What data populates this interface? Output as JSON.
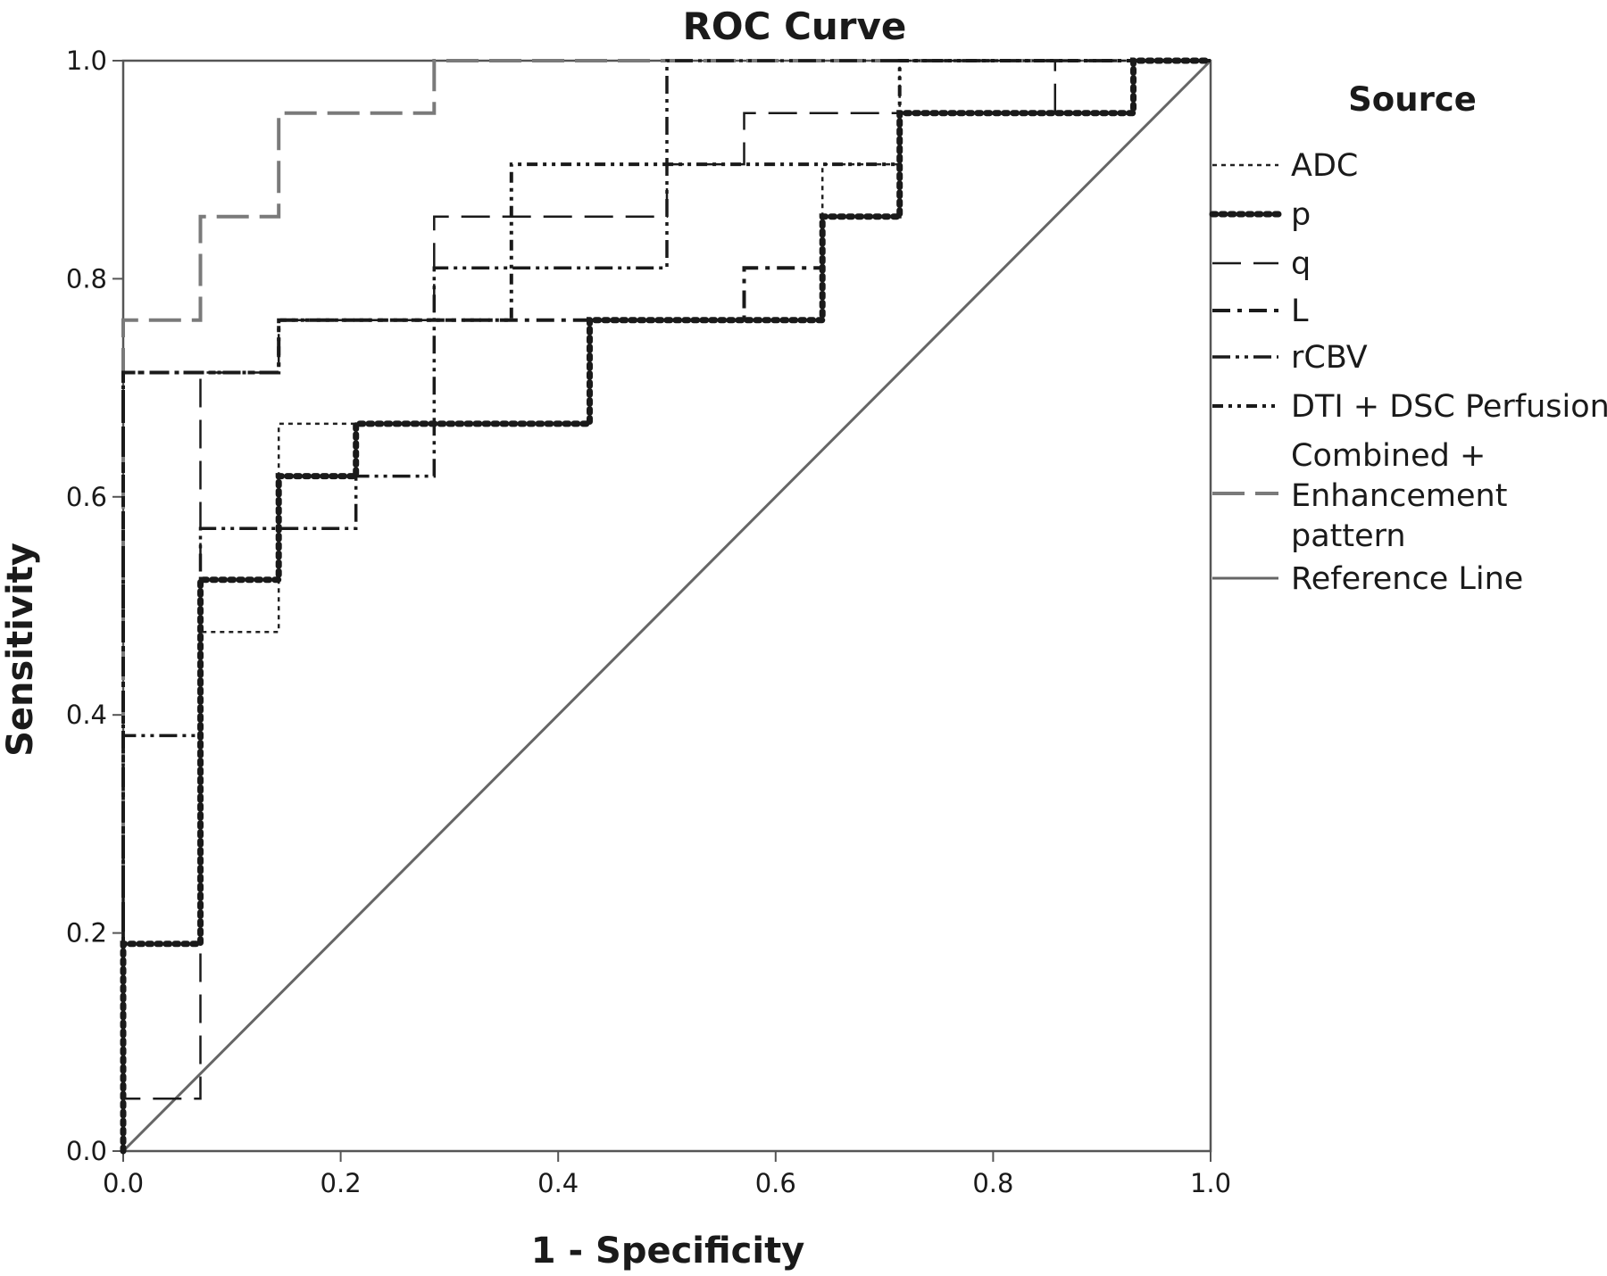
{
  "chart_data": {
    "type": "line",
    "title": "ROC Curve",
    "xlabel": "1 - Specificity",
    "ylabel": "Sensitivity",
    "xlim": [
      0,
      1
    ],
    "ylim": [
      0,
      1
    ],
    "x_ticks": [
      "0.0",
      "0.2",
      "0.4",
      "0.6",
      "0.8",
      "1.0"
    ],
    "y_ticks": [
      "0.0",
      "0.2",
      "0.4",
      "0.6",
      "0.8",
      "1.0"
    ],
    "grid": false,
    "legend": {
      "title": "Source",
      "placement": "right"
    },
    "series": [
      {
        "name": "ADC",
        "color": "#222222",
        "dash": "dotted-fine",
        "points": [
          [
            0,
            0
          ],
          [
            0,
            0.19
          ],
          [
            0.071,
            0.19
          ],
          [
            0.071,
            0.476
          ],
          [
            0.143,
            0.476
          ],
          [
            0.143,
            0.667
          ],
          [
            0.429,
            0.667
          ],
          [
            0.429,
            0.762
          ],
          [
            0.643,
            0.762
          ],
          [
            0.643,
            0.905
          ],
          [
            0.714,
            0.905
          ],
          [
            0.714,
            1.0
          ],
          [
            1.0,
            1.0
          ]
        ]
      },
      {
        "name": "p",
        "color": "#1a1a1a",
        "dash": "dotted-bold",
        "points": [
          [
            0,
            0
          ],
          [
            0,
            0.19
          ],
          [
            0.071,
            0.19
          ],
          [
            0.071,
            0.524
          ],
          [
            0.143,
            0.524
          ],
          [
            0.143,
            0.619
          ],
          [
            0.214,
            0.619
          ],
          [
            0.214,
            0.667
          ],
          [
            0.429,
            0.667
          ],
          [
            0.429,
            0.762
          ],
          [
            0.643,
            0.762
          ],
          [
            0.643,
            0.857
          ],
          [
            0.714,
            0.857
          ],
          [
            0.714,
            0.952
          ],
          [
            0.929,
            0.952
          ],
          [
            0.929,
            1.0
          ],
          [
            1.0,
            1.0
          ]
        ]
      },
      {
        "name": "q",
        "color": "#1a1a1a",
        "dash": "long-dash",
        "points": [
          [
            0,
            0
          ],
          [
            0,
            0.048
          ],
          [
            0.071,
            0.048
          ],
          [
            0.071,
            0.714
          ],
          [
            0.143,
            0.714
          ],
          [
            0.143,
            0.762
          ],
          [
            0.286,
            0.762
          ],
          [
            0.286,
            0.857
          ],
          [
            0.5,
            0.857
          ],
          [
            0.5,
            0.905
          ],
          [
            0.571,
            0.905
          ],
          [
            0.571,
            0.952
          ],
          [
            0.857,
            0.952
          ],
          [
            0.857,
            1.0
          ],
          [
            1.0,
            1.0
          ]
        ]
      },
      {
        "name": "L",
        "color": "#1a1a1a",
        "dash": "dash-dot",
        "points": [
          [
            0,
            0
          ],
          [
            0,
            0.714
          ],
          [
            0.143,
            0.714
          ],
          [
            0.143,
            0.762
          ],
          [
            0.571,
            0.762
          ],
          [
            0.571,
            0.81
          ],
          [
            0.643,
            0.81
          ],
          [
            0.643,
            0.857
          ],
          [
            0.714,
            0.857
          ],
          [
            0.714,
            0.952
          ],
          [
            0.929,
            0.952
          ],
          [
            0.929,
            1.0
          ],
          [
            1.0,
            1.0
          ]
        ]
      },
      {
        "name": "rCBV",
        "color": "#1a1a1a",
        "dash": "dash-dot-dot",
        "points": [
          [
            0,
            0
          ],
          [
            0,
            0.381
          ],
          [
            0.071,
            0.381
          ],
          [
            0.071,
            0.571
          ],
          [
            0.214,
            0.571
          ],
          [
            0.214,
            0.619
          ],
          [
            0.286,
            0.619
          ],
          [
            0.286,
            0.81
          ],
          [
            0.5,
            0.81
          ],
          [
            0.5,
            1.0
          ],
          [
            1.0,
            1.0
          ]
        ]
      },
      {
        "name": "DTI + DSC Perfusion",
        "color": "#1a1a1a",
        "dash": "dash-dot-dot-short",
        "points": [
          [
            0,
            0
          ],
          [
            0,
            0.714
          ],
          [
            0.143,
            0.714
          ],
          [
            0.143,
            0.762
          ],
          [
            0.357,
            0.762
          ],
          [
            0.357,
            0.905
          ],
          [
            0.714,
            0.905
          ],
          [
            0.714,
            1.0
          ],
          [
            1.0,
            1.0
          ]
        ]
      },
      {
        "name": "Combined + Enhancement pattern",
        "color": "#7a7a7a",
        "dash": "long-dash-gray",
        "points": [
          [
            0,
            0
          ],
          [
            0,
            0.762
          ],
          [
            0.071,
            0.762
          ],
          [
            0.071,
            0.857
          ],
          [
            0.143,
            0.857
          ],
          [
            0.143,
            0.952
          ],
          [
            0.286,
            0.952
          ],
          [
            0.286,
            1.0
          ],
          [
            1.0,
            1.0
          ]
        ]
      },
      {
        "name": "Reference Line",
        "color": "#666666",
        "dash": "solid",
        "points": [
          [
            0,
            0
          ],
          [
            1,
            1
          ]
        ]
      }
    ]
  },
  "legend_lines": [
    [
      "ADC"
    ],
    [
      "p"
    ],
    [
      "q"
    ],
    [
      "L"
    ],
    [
      "rCBV"
    ],
    [
      "DTI + DSC Perfusion"
    ],
    [
      "Combined +",
      "Enhancement",
      "pattern"
    ],
    [
      "Reference Line"
    ]
  ]
}
